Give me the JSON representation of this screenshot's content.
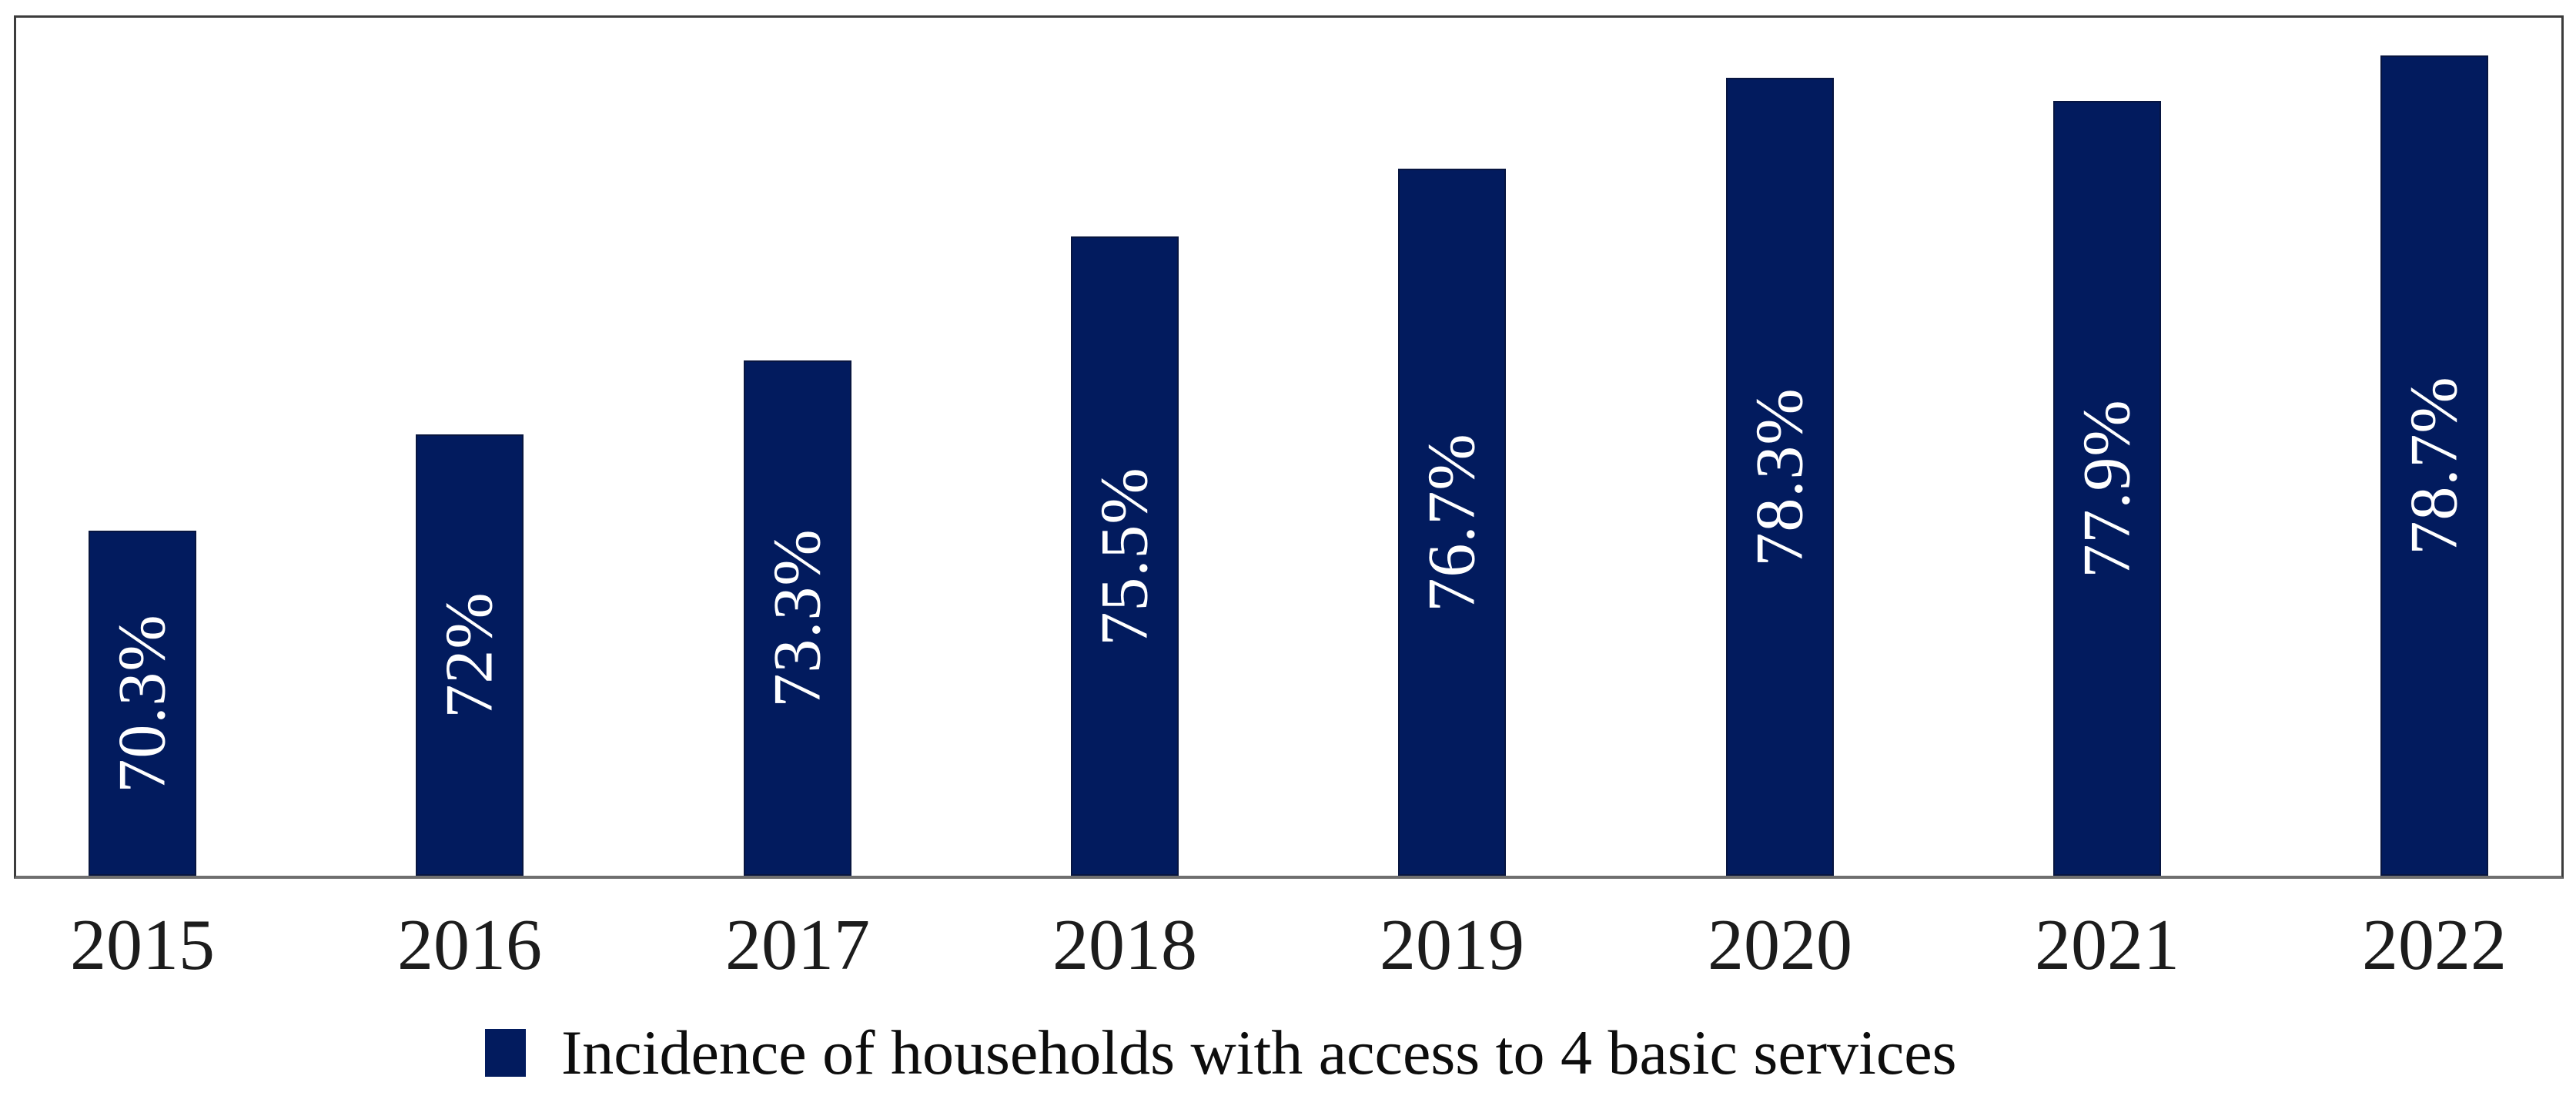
{
  "chart_data": {
    "type": "bar",
    "title": "",
    "xlabel": "",
    "ylabel": "",
    "categories": [
      "2015",
      "2016",
      "2017",
      "2018",
      "2019",
      "2020",
      "2021",
      "2022"
    ],
    "values": [
      70.3,
      72,
      73.3,
      75.5,
      76.7,
      78.3,
      77.9,
      78.7
    ],
    "value_labels": [
      "70.3%",
      "72%",
      "73.3%",
      "75.5%",
      "76.7%",
      "78.3%",
      "77.9%",
      "78.7%"
    ],
    "value_label_rotation_deg": -90,
    "value_label_position": "inside-center",
    "series_name": "Incidence of households with access to 4 basic services",
    "legend": {
      "label": "Incidence of households with access to 4 basic services",
      "position": "bottom"
    },
    "ylim": [
      64.2,
      79.35
    ],
    "y_axis_visible": false,
    "grid": false,
    "colors": {
      "bar_fill": "#021b5e",
      "bar_edge": "#071540",
      "value_label": "#ffffff",
      "plot_border": "#3c3c3c",
      "axis_line": "#6f6f6f",
      "tick_label": "#1c1c1c"
    }
  }
}
